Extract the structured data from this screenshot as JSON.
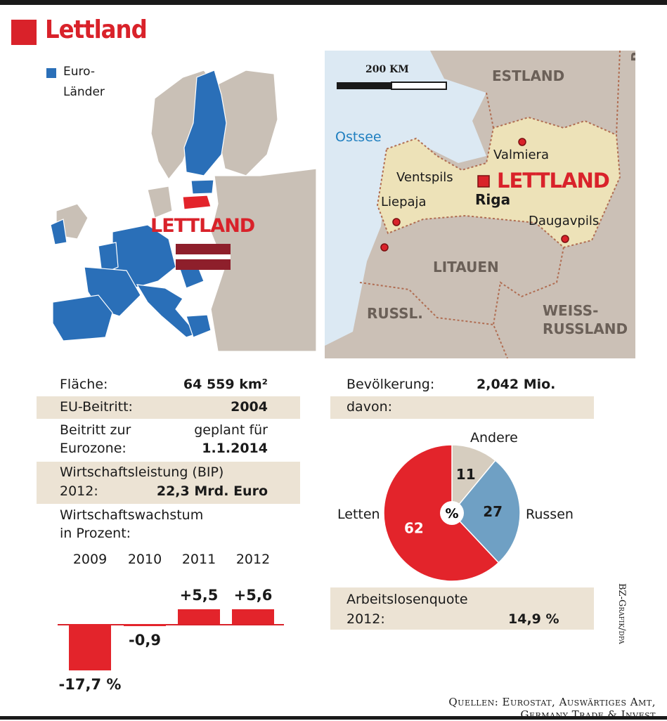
{
  "title": "Lettland",
  "europe_map": {
    "legend_label_1": "Euro-",
    "legend_label_2": "Länder",
    "legend_color": "#2a6fb8",
    "country_label": "LETTLAND"
  },
  "region_map": {
    "scale_label": "200 KM",
    "labels": {
      "estland": "ESTLAND",
      "russland": "RUSSLAND",
      "ostsee": "Ostsee",
      "valmiera": "Valmiera",
      "ventspils": "Ventspils",
      "lettland": "LETTLAND",
      "liepaja": "Liepaja",
      "riga": "Riga",
      "daugavpils": "Daugavpils",
      "litauen": "LITAUEN",
      "russl": "RUSSL.",
      "weiss1": "WEISS-",
      "weiss2": "RUSSLAND"
    }
  },
  "facts": {
    "flaeche_label": "Fläche:",
    "flaeche_value": "64 559 km²",
    "eu_label": "EU-Beitritt:",
    "eu_value": "2004",
    "euro_label_1": "Beitritt zur",
    "euro_label_2": "Eurozone:",
    "euro_value_1": "geplant für",
    "euro_value_2": "1.1.2014",
    "bip_label_1": "Wirtschaftsleistung (BIP)",
    "bip_label_2": "2012:",
    "bip_value": "22,3 Mrd. Euro",
    "growth_label_1": "Wirtschaftswachstum",
    "growth_label_2": "in Prozent:"
  },
  "population": {
    "label": "Bevölkerung:",
    "value": "2,042 Mio.",
    "davon_label": "davon:",
    "unemployment_label_1": "Arbeitslosenquote",
    "unemployment_label_2": "2012:",
    "unemployment_value": "14,9 %"
  },
  "chart_data": [
    {
      "type": "bar",
      "categories": [
        "2009",
        "2010",
        "2011",
        "2012"
      ],
      "values": [
        -17.7,
        -0.9,
        5.5,
        5.6
      ],
      "data_labels": [
        "-17,7 %",
        "-0,9",
        "+5,5",
        "+5,6"
      ],
      "color": "#e3242b"
    },
    {
      "type": "pie",
      "center_label": "%",
      "slices": [
        {
          "label": "Letten",
          "value": 62,
          "value_label": "62",
          "color": "#e3242b"
        },
        {
          "label": "Russen",
          "value": 27,
          "value_label": "27",
          "color": "#6fa0c4"
        },
        {
          "label": "Andere",
          "value": 11,
          "value_label": "11",
          "color": "#d6cdbf"
        }
      ]
    }
  ],
  "footer": {
    "source_1": "Quellen: Eurostat, Auswärtiges Amt,",
    "source_2": "Germany Trade & Invest",
    "credit": "BZ-Grafik/dpa"
  }
}
